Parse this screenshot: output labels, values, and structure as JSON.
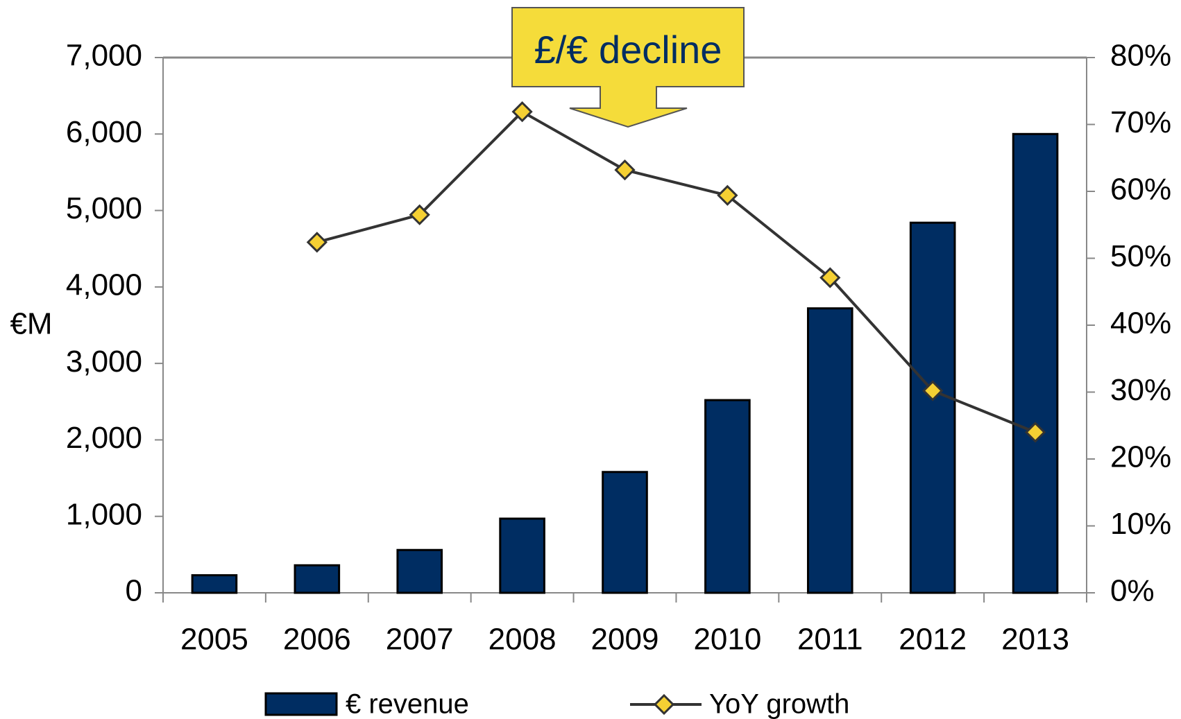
{
  "chart_data": {
    "type": "bar-line",
    "annotation": "£/€ decline",
    "y_label": "€M",
    "categories": [
      "2005",
      "2006",
      "2007",
      "2008",
      "2009",
      "2010",
      "2011",
      "2012",
      "2013"
    ],
    "series": [
      {
        "name": "€ revenue",
        "type": "bar",
        "color": "#002d62",
        "values": [
          230,
          360,
          560,
          970,
          1580,
          2520,
          3720,
          4840,
          6000
        ]
      },
      {
        "name": "YoY growth",
        "type": "line",
        "axis": "y2",
        "color": "#333333",
        "marker_color": "#f5d033",
        "values": [
          null,
          52.4,
          56.5,
          71.9,
          63.2,
          59.4,
          47.1,
          30.2,
          24.0
        ]
      }
    ],
    "ylim": [
      0,
      7000
    ],
    "yticks": [
      0,
      {
        "value": 1000,
        "label": "1,000"
      },
      {
        "value": 2000,
        "label": "2,000"
      },
      {
        "value": 3000,
        "label": "3,000"
      },
      {
        "value": 4000,
        "label": "4,000"
      },
      {
        "value": 5000,
        "label": "5,000"
      },
      {
        "value": 6000,
        "label": "6,000"
      },
      {
        "value": 7000,
        "label": "7,000"
      }
    ],
    "y2lim": [
      0,
      80
    ],
    "y2ticks": [
      {
        "value": 0,
        "label": "0%"
      },
      {
        "value": 10,
        "label": "10%"
      },
      {
        "value": 20,
        "label": "20%"
      },
      {
        "value": 30,
        "label": "30%"
      },
      {
        "value": 40,
        "label": "40%"
      },
      {
        "value": 50,
        "label": "50%"
      },
      {
        "value": 60,
        "label": "60%"
      },
      {
        "value": 70,
        "label": "70%"
      },
      {
        "value": 80,
        "label": "80%"
      }
    ],
    "legend": "bottom"
  }
}
